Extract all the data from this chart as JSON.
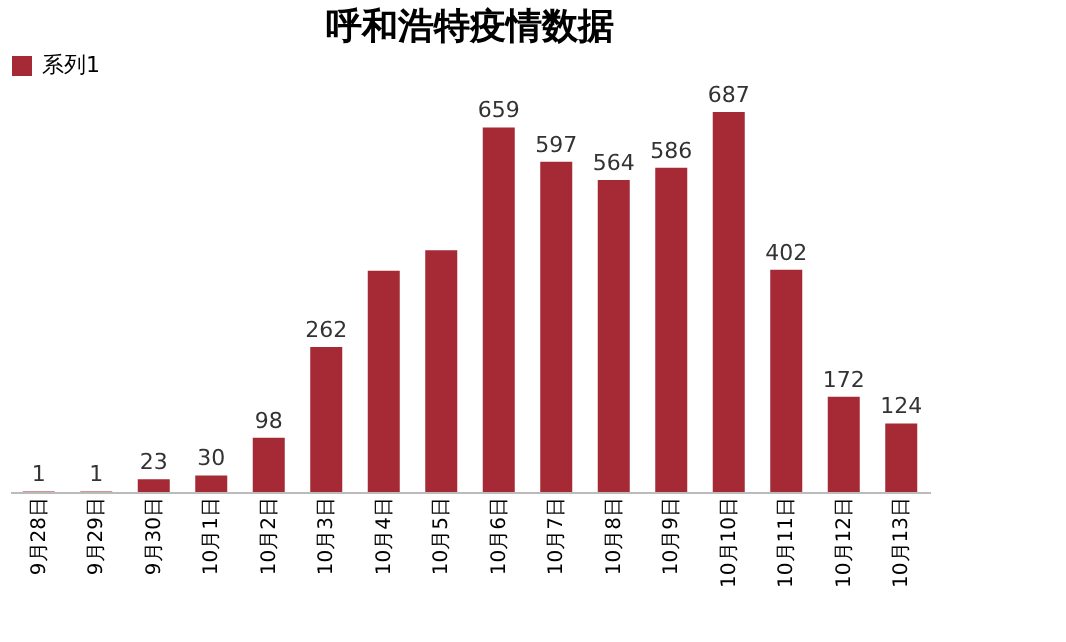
{
  "chart_data": {
    "type": "bar",
    "title": "呼和浩特疫情数据",
    "categories": [
      "9月28日",
      "9月29日",
      "9月30日",
      "10月1日",
      "10月2日",
      "10月3日",
      "10月4日",
      "10月5日",
      "10月6日",
      "10月7日",
      "10月8日",
      "10月9日",
      "10月10日",
      "10月11日",
      "10月12日",
      "10月13日"
    ],
    "series": [
      {
        "name": "系列1",
        "color": "#a52a35",
        "values": [
          1,
          1,
          23,
          30,
          98,
          262,
          400,
          437,
          659,
          597,
          564,
          586,
          687,
          402,
          172,
          124
        ],
        "value_labels": [
          "1",
          "1",
          "23",
          "30",
          "98",
          "262",
          null,
          null,
          "659",
          "597",
          "564",
          "586",
          "687",
          "402",
          "172",
          "124"
        ]
      }
    ],
    "legend": "top"
  }
}
